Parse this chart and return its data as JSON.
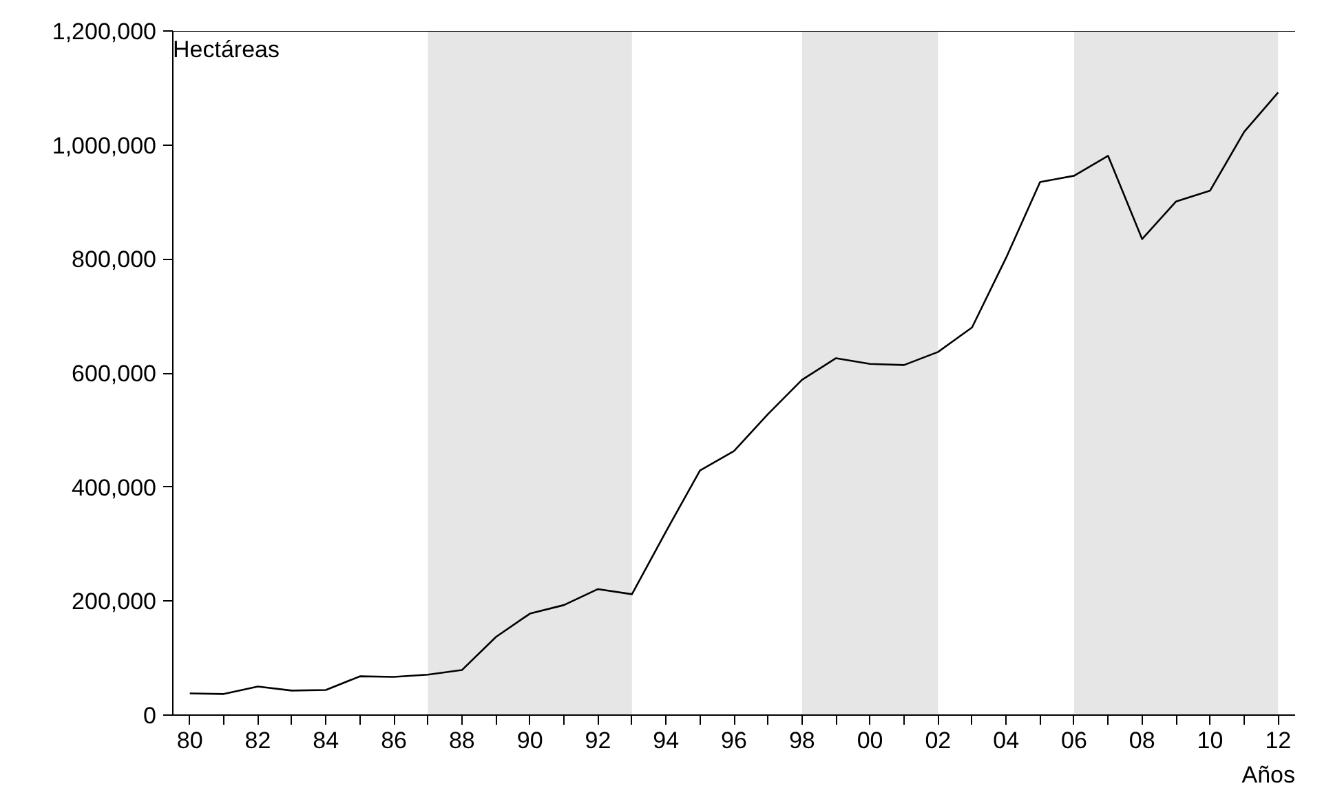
{
  "chart_data": {
    "type": "line",
    "ylabel": "Hectáreas",
    "xlabel": "Años",
    "x": [
      1980,
      1981,
      1982,
      1983,
      1984,
      1985,
      1986,
      1987,
      1988,
      1989,
      1990,
      1991,
      1992,
      1993,
      1994,
      1995,
      1996,
      1997,
      1998,
      1999,
      2000,
      2001,
      2002,
      2003,
      2004,
      2005,
      2006,
      2007,
      2008,
      2009,
      2010,
      2011,
      2012
    ],
    "series": [
      {
        "color": "#000000",
        "values": [
          38000,
          37000,
          50000,
          43000,
          44000,
          68000,
          67000,
          71000,
          79000,
          137000,
          178000,
          193000,
          221000,
          212000,
          322000,
          429000,
          463000,
          528000,
          588000,
          626000,
          616000,
          614000,
          637000,
          680000,
          802000,
          935000,
          946000,
          981000,
          835000,
          901000,
          920000,
          1023000,
          1092000
        ]
      }
    ],
    "xlim": [
      1979.5,
      2012.5
    ],
    "ylim": [
      0,
      1200000
    ],
    "xticks": [
      {
        "value": 1980,
        "label": "80"
      },
      {
        "value": 1981,
        "label": null
      },
      {
        "value": 1982,
        "label": "82"
      },
      {
        "value": 1983,
        "label": null
      },
      {
        "value": 1984,
        "label": "84"
      },
      {
        "value": 1985,
        "label": null
      },
      {
        "value": 1986,
        "label": "86"
      },
      {
        "value": 1987,
        "label": null
      },
      {
        "value": 1988,
        "label": "88"
      },
      {
        "value": 1989,
        "label": null
      },
      {
        "value": 1990,
        "label": "90"
      },
      {
        "value": 1991,
        "label": null
      },
      {
        "value": 1992,
        "label": "92"
      },
      {
        "value": 1993,
        "label": null
      },
      {
        "value": 1994,
        "label": "94"
      },
      {
        "value": 1995,
        "label": null
      },
      {
        "value": 1996,
        "label": "96"
      },
      {
        "value": 1997,
        "label": null
      },
      {
        "value": 1998,
        "label": "98"
      },
      {
        "value": 1999,
        "label": null
      },
      {
        "value": 2000,
        "label": "00"
      },
      {
        "value": 2001,
        "label": null
      },
      {
        "value": 2002,
        "label": "02"
      },
      {
        "value": 2003,
        "label": null
      },
      {
        "value": 2004,
        "label": "04"
      },
      {
        "value": 2005,
        "label": null
      },
      {
        "value": 2006,
        "label": "06"
      },
      {
        "value": 2007,
        "label": null
      },
      {
        "value": 2008,
        "label": "08"
      },
      {
        "value": 2009,
        "label": null
      },
      {
        "value": 2010,
        "label": "10"
      },
      {
        "value": 2011,
        "label": null
      },
      {
        "value": 2012,
        "label": "12"
      }
    ],
    "yticks": [
      {
        "value": 0,
        "label": "0"
      },
      {
        "value": 200000,
        "label": "200,000"
      },
      {
        "value": 400000,
        "label": "400,000"
      },
      {
        "value": 600000,
        "label": "600,000"
      },
      {
        "value": 800000,
        "label": "800,000"
      },
      {
        "value": 1000000,
        "label": "1,000,000"
      },
      {
        "value": 1200000,
        "label": "1,200,000"
      }
    ],
    "bands": [
      {
        "axis": "x",
        "from": 1987,
        "to": 1993,
        "color": "#e6e6e6"
      },
      {
        "axis": "x",
        "from": 1998,
        "to": 2002,
        "color": "#e6e6e6"
      },
      {
        "axis": "x",
        "from": 2006,
        "to": 2012,
        "color": "#e6e6e6"
      }
    ],
    "grid": false,
    "marker": "none",
    "line_style": "solid"
  }
}
